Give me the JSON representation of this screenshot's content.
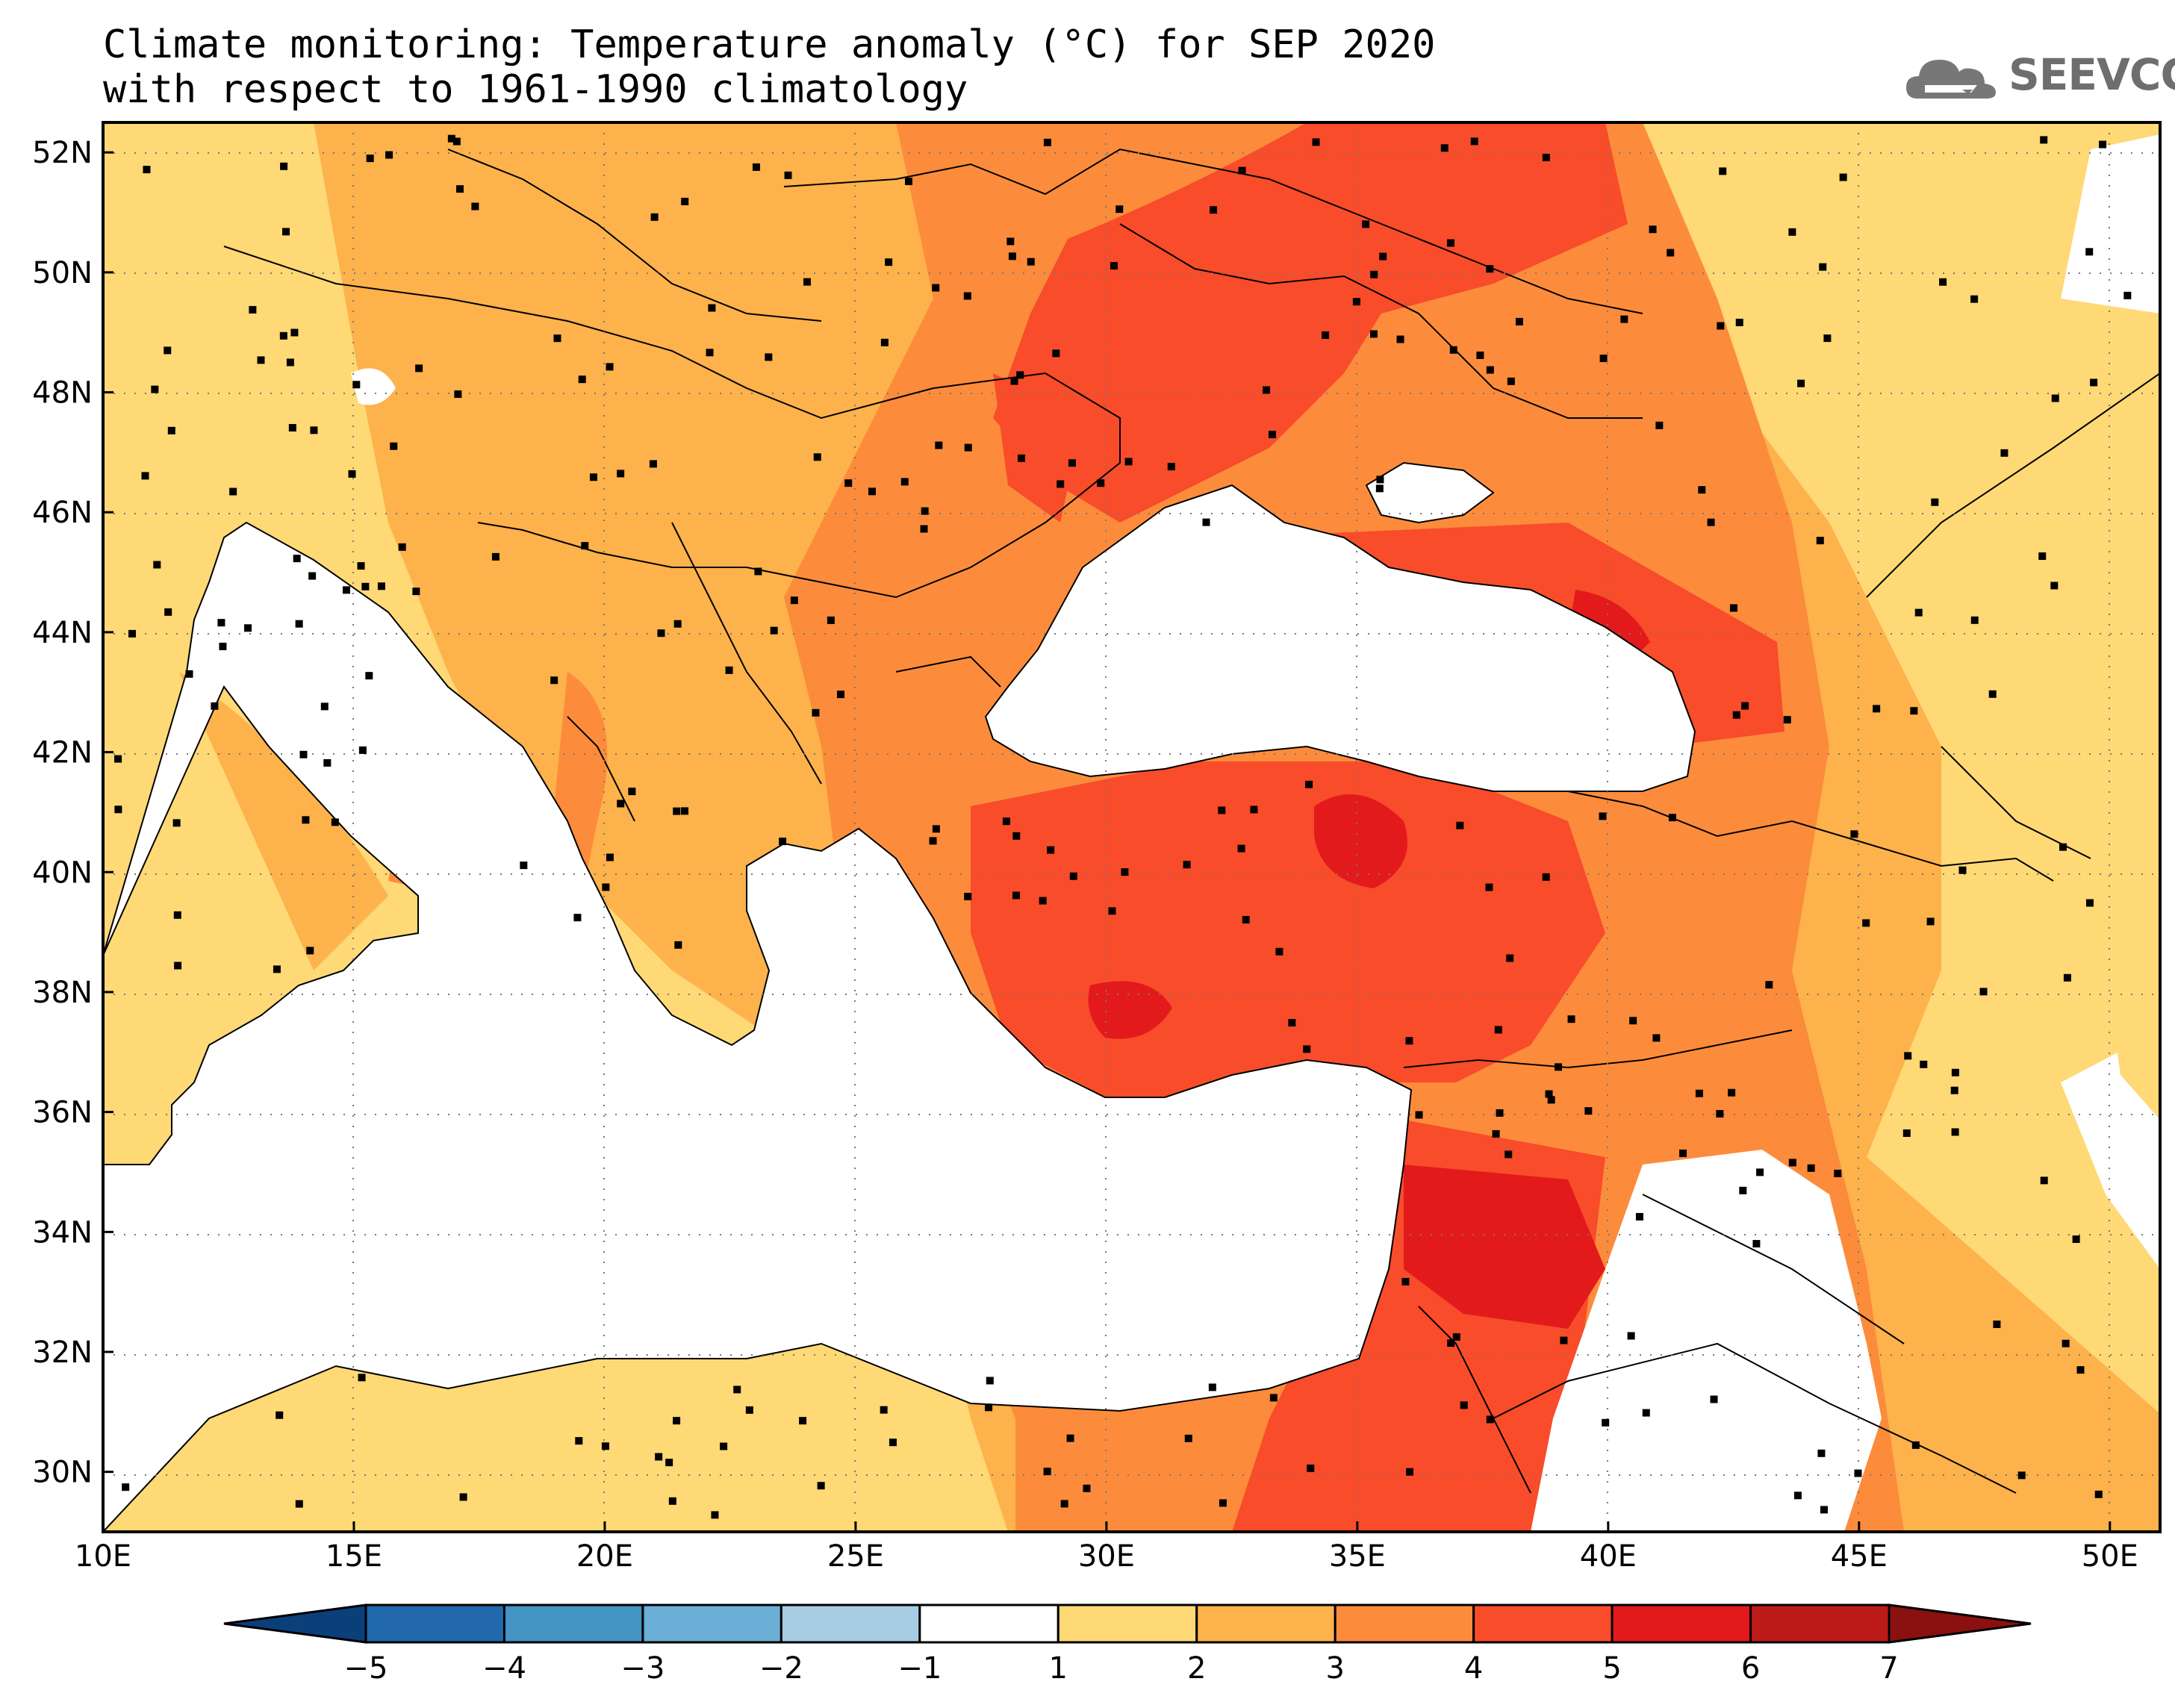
{
  "title": {
    "line1": "Climate monitoring: Temperature anomaly (°C) for SEP 2020",
    "line2": "with respect to 1961-1990 climatology"
  },
  "logo": {
    "text": "SEEVCCC",
    "icon": "cloud-icon"
  },
  "map": {
    "lon_labels": [
      "10E",
      "15E",
      "20E",
      "25E",
      "30E",
      "35E",
      "40E",
      "45E",
      "50E"
    ],
    "lat_labels": [
      "52N",
      "50N",
      "48N",
      "46N",
      "44N",
      "42N",
      "40N",
      "38N",
      "36N",
      "34N",
      "32N",
      "30N"
    ],
    "lon_range": [
      10,
      51
    ],
    "lat_range": [
      29,
      52.5
    ],
    "grid": true
  },
  "colorbar": {
    "labels": [
      "-5",
      "-4",
      "-3",
      "-2",
      "-1",
      "1",
      "2",
      "3",
      "4",
      "5",
      "6",
      "7"
    ],
    "colors": [
      "#0b3f7a",
      "#2168ac",
      "#4393c3",
      "#6baed6",
      "#a6cde3",
      "#ffffff",
      "#fed976",
      "#fdb24c",
      "#fc8c3c",
      "#f84c2a",
      "#e31a1c",
      "#bd1a1a",
      "#8b1010"
    ]
  }
}
